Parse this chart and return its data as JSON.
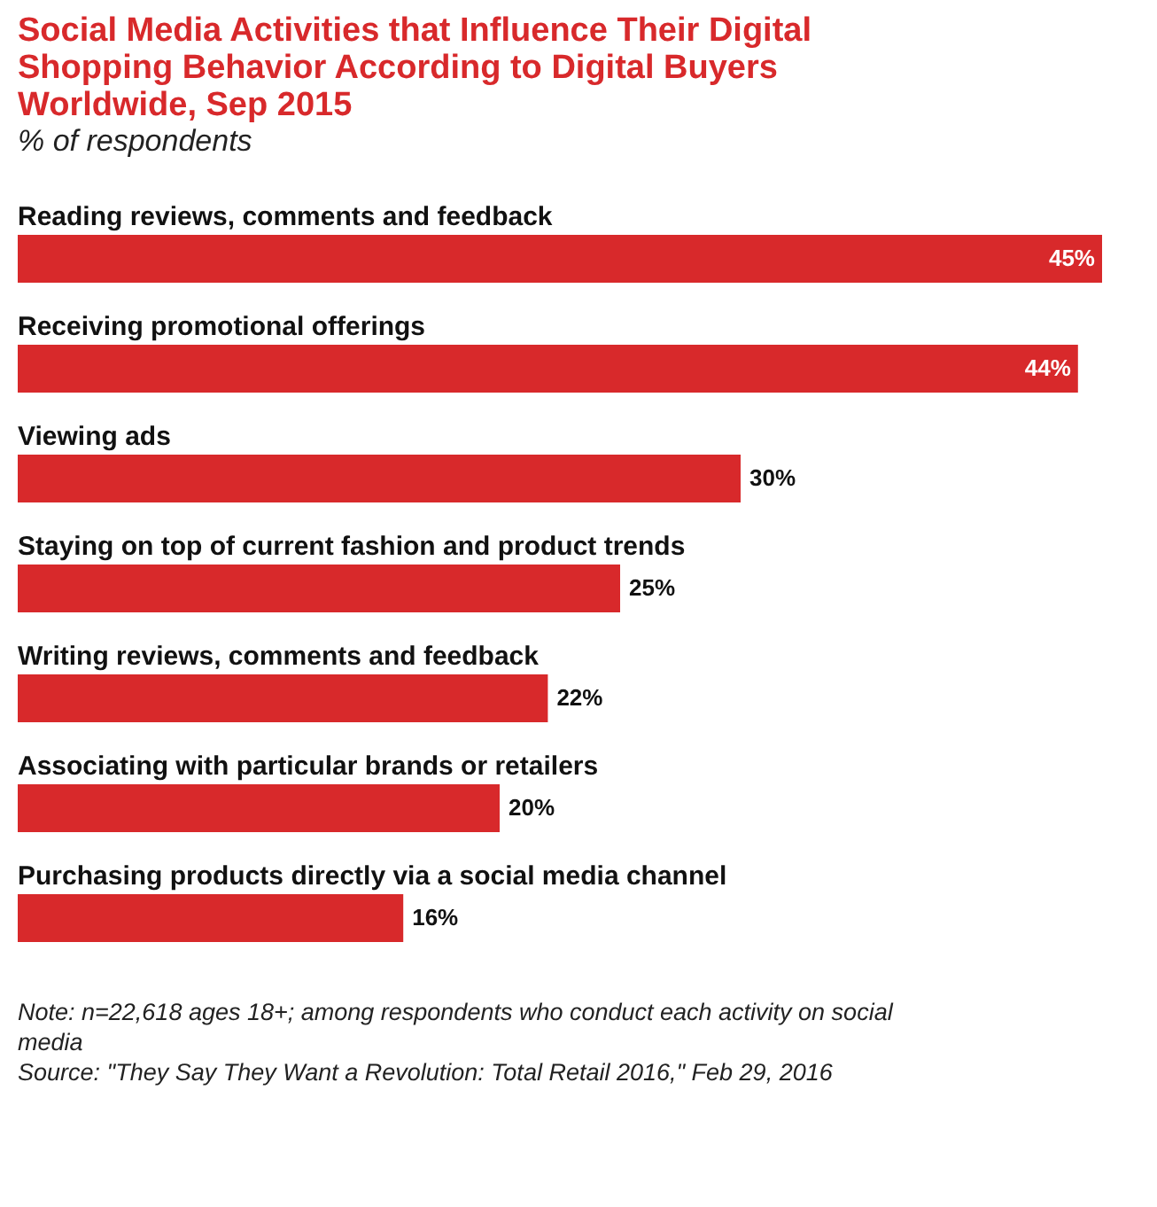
{
  "chart_data": {
    "type": "bar",
    "orientation": "horizontal",
    "title": "Social Media Activities that Influence Their Digital Shopping Behavior According to Digital Buyers Worldwide, Sep 2015",
    "subtitle": "% of respondents",
    "categories": [
      "Reading reviews, comments and feedback",
      "Receiving promotional offerings",
      "Viewing ads",
      "Staying on top of current fashion and product trends",
      "Writing reviews, comments and feedback",
      "Associating with particular brands or retailers",
      "Purchasing products directly via a social media channel"
    ],
    "values": [
      45,
      44,
      30,
      25,
      22,
      20,
      16
    ],
    "value_labels": [
      "45%",
      "44%",
      "30%",
      "25%",
      "22%",
      "20%",
      "16%"
    ],
    "color": "#d8292b",
    "annotations": [
      "Note: n=22,618 ages 18+; among respondents who conduct each activity on social media",
      "Source: \"They Say They Want a Revolution: Total Retail 2016,\" Feb 29, 2016"
    ]
  }
}
